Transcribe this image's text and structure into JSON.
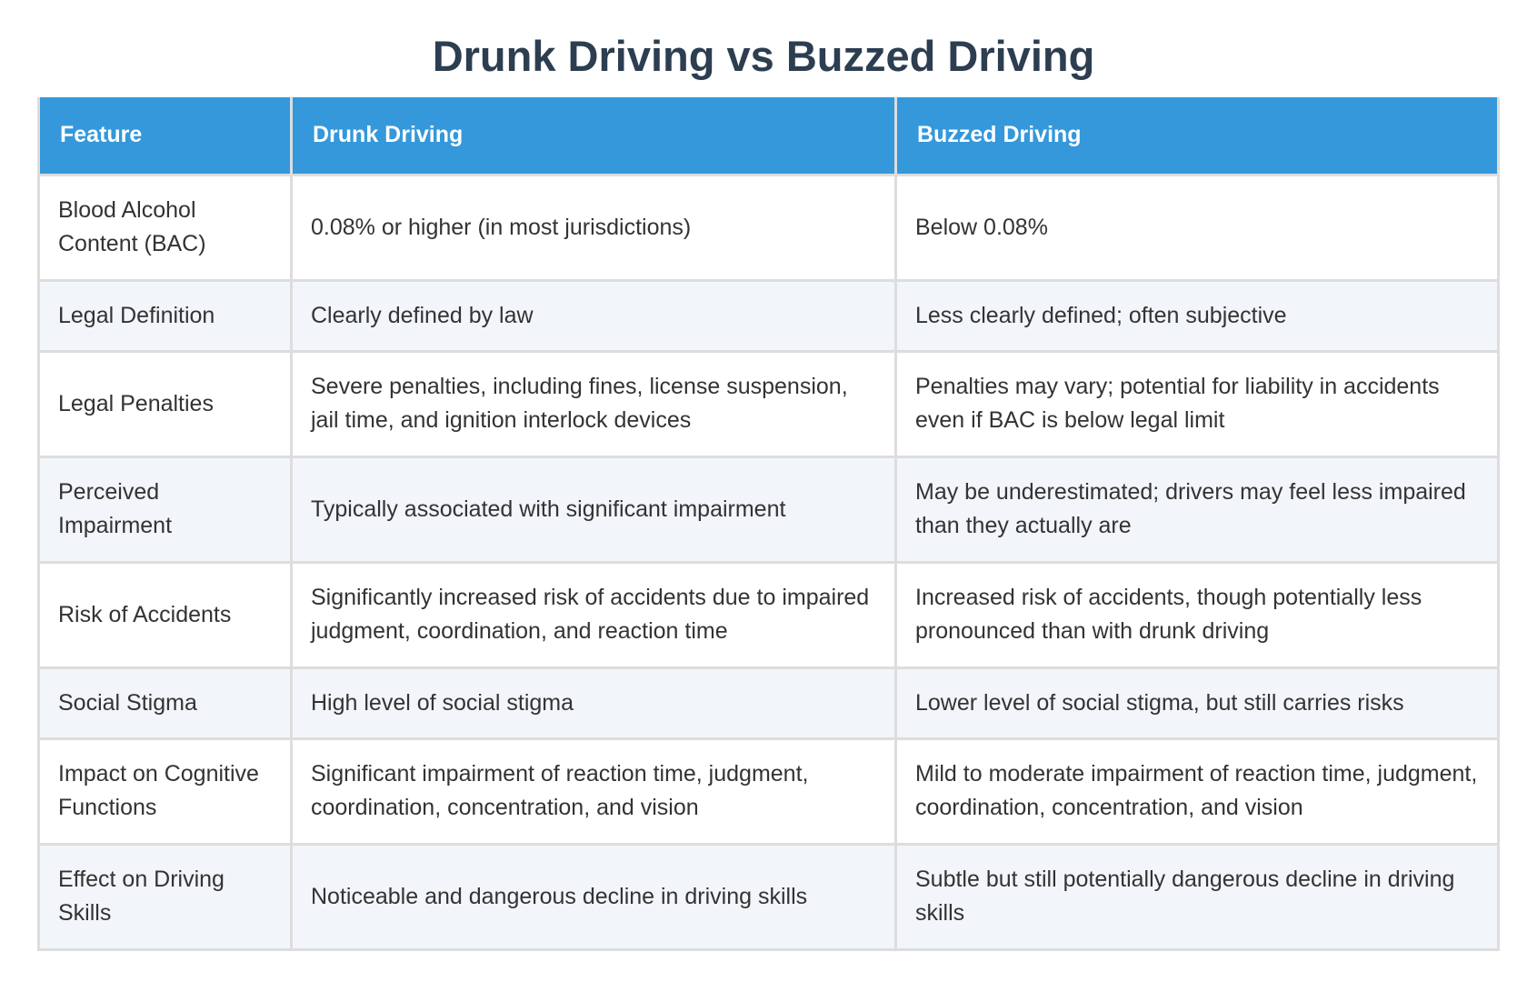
{
  "title": "Drunk Driving vs Buzzed Driving",
  "table": {
    "headers": [
      "Feature",
      "Drunk Driving",
      "Buzzed Driving"
    ],
    "rows": [
      [
        "Blood Alcohol Content (BAC)",
        "0.08% or higher (in most jurisdictions)",
        "Below 0.08%"
      ],
      [
        "Legal Definition",
        "Clearly defined by law",
        "Less clearly defined; often subjective"
      ],
      [
        "Legal Penalties",
        "Severe penalties, including fines, license suspension, jail time, and ignition interlock devices",
        "Penalties may vary; potential for liability in accidents even if BAC is below legal limit"
      ],
      [
        "Perceived Impairment",
        "Typically associated with significant impairment",
        "May be underestimated; drivers may feel less impaired than they actually are"
      ],
      [
        "Risk of Accidents",
        "Significantly increased risk of accidents due to impaired judgment, coordination, and reaction time",
        "Increased risk of accidents, though potentially less pronounced than with drunk driving"
      ],
      [
        "Social Stigma",
        "High level of social stigma",
        "Lower level of social stigma, but still carries risks"
      ],
      [
        "Impact on Cognitive Functions",
        "Significant impairment of reaction time, judgment, coordination, concentration, and vision",
        "Mild to moderate impairment of reaction time, judgment, coordination, concentration, and vision"
      ],
      [
        "Effect on Driving Skills",
        "Noticeable and dangerous decline in driving skills",
        "Subtle but still potentially dangerous decline in driving skills"
      ]
    ]
  },
  "colors": {
    "title": "#2c3e50",
    "header_bg": "#3498db",
    "header_text": "#ffffff",
    "row_alt_bg": "#f2f5f9",
    "border": "#dddddd"
  }
}
